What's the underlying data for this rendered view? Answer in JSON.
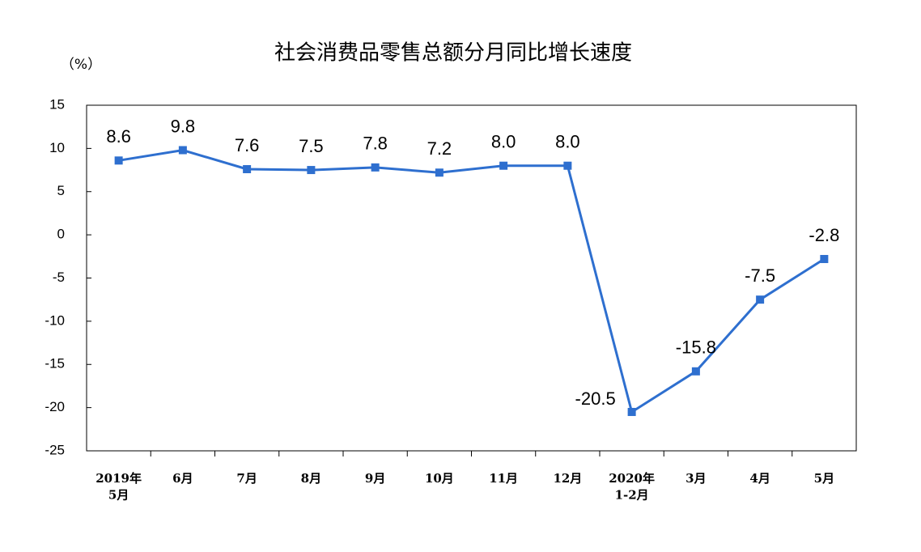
{
  "chart_data": {
    "type": "line",
    "title": "社会消费品零售总额分月同比增长速度",
    "y_label": "（%）",
    "categories": [
      "2019年\n5月",
      "6月",
      "7月",
      "8月",
      "9月",
      "10月",
      "11月",
      "12月",
      "2020年\n1-2月",
      "3月",
      "4月",
      "5月"
    ],
    "values": [
      8.6,
      9.8,
      7.6,
      7.5,
      7.8,
      7.2,
      8.0,
      8.0,
      -20.5,
      -15.8,
      -7.5,
      -2.8
    ],
    "value_labels": [
      "8.6",
      "9.8",
      "7.6",
      "7.5",
      "7.8",
      "7.2",
      "8.0",
      "8.0",
      "-20.5",
      "-15.8",
      "-7.5",
      "-2.8"
    ],
    "color": "#2e6fcf",
    "ylim": [
      -25,
      15
    ],
    "yticks": [
      -25,
      -20,
      -15,
      -10,
      -5,
      0,
      5,
      10,
      15
    ]
  }
}
